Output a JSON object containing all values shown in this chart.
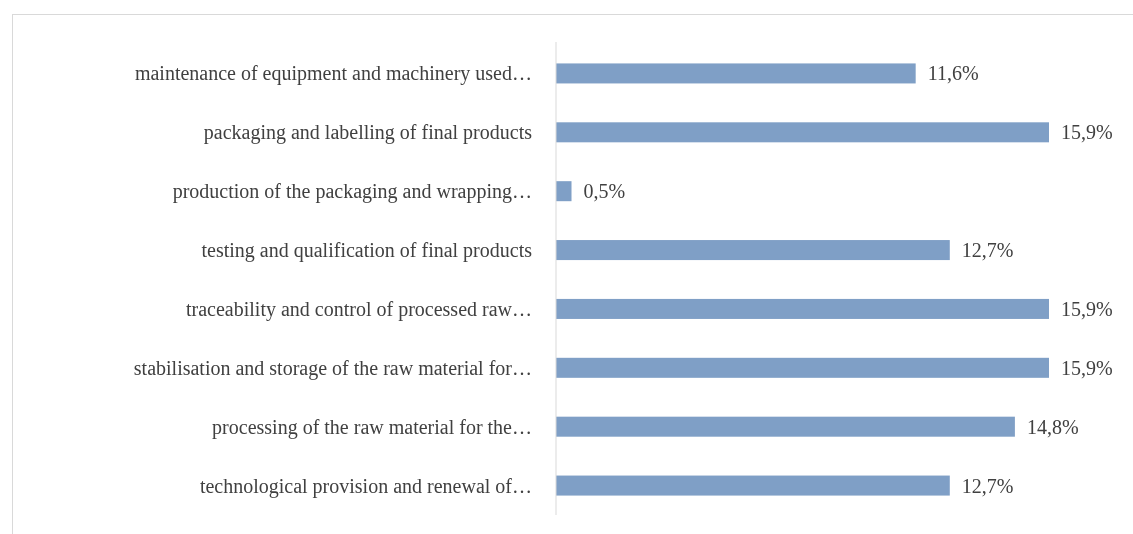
{
  "chart_data": {
    "type": "bar",
    "orientation": "horizontal",
    "categories": [
      "maintenance of equipment and machinery used…",
      "packaging and labelling of final products",
      "production of the packaging and wrapping…",
      "testing and qualification of final products",
      "traceability and control of processed raw…",
      "stabilisation and storage of the raw material for…",
      "processing of the raw material for the…",
      "technological provision and renewal of…"
    ],
    "values": [
      11.6,
      15.9,
      0.5,
      12.7,
      15.9,
      15.9,
      14.8,
      12.7
    ],
    "value_labels": [
      "11,6%",
      "15,9%",
      "0,5%",
      "12,7%",
      "15,9%",
      "15,9%",
      "14,8%",
      "12,7%"
    ],
    "color": "#7f9fc6"
  }
}
